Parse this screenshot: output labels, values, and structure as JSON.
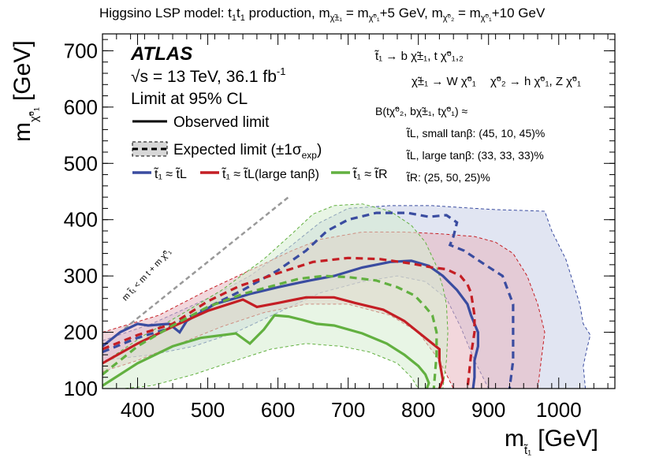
{
  "chart_data": {
    "type": "line",
    "title": "Higgsino LSP model: t̃₁t̃₁ production, m(χ̃₁±) = m(χ̃₁⁰)+5 GeV, m(χ̃₂⁰) = m(χ̃₁⁰)+10 GeV",
    "title_parts": {
      "a": "Higgsino LSP model: ",
      "b": "t",
      "c": "t",
      "d": " production, m",
      "e": " = m",
      "f": "+5 GeV, m",
      "g": " = m",
      "h": "+10 GeV",
      "chi_pm": "χ̃±₁",
      "chi10": "χ̃⁰₁",
      "chi20": "χ̃⁰₂",
      "stop_sub": "1"
    },
    "xlabel": "m",
    "xlabel_sub": "t̃₁",
    "xlabel_unit": "[GeV]",
    "ylabel": "m",
    "ylabel_sub": "χ̃⁰₁",
    "ylabel_unit": "[GeV]",
    "xlim": [
      350,
      1080
    ],
    "ylim": [
      100,
      730
    ],
    "xticks": [
      400,
      500,
      600,
      700,
      800,
      900,
      1000
    ],
    "yticks": [
      100,
      200,
      300,
      400,
      500,
      600,
      700
    ],
    "experiment": "ATLAS",
    "energy_text": "√s = 13 TeV, 36.1 fb",
    "energy_sup": "-1",
    "limit_text": "Limit at 95% CL",
    "legend": {
      "observed": "Observed limit",
      "expected": "Expected limit (±1σ",
      "expected_sub": "exp",
      "expected_close": ")",
      "series_labels": [
        "t̃₁ ≈ t̃L",
        "t̃₁ ≈ t̃L(large tanβ)",
        "t̃₁ ≈ t̃R"
      ]
    },
    "decay_text": {
      "line1": "t̃₁ → b χ̃±₁, t χ̃⁰₁,₂",
      "line2a": "χ̃±₁ → W χ̃⁰₁",
      "line2b": "χ̃⁰₂ → h χ̃⁰₁, Z χ̃⁰₁",
      "line3": "B(tχ̃⁰₂, bχ̃±₁, tχ̃⁰₁) ≈",
      "line4": "t̃L, small tanβ: (45, 10, 45)%",
      "line5": "t̃L, large tanβ: (33, 33, 33)%",
      "line6": "t̃R: (25, 50, 25)%"
    },
    "kinematic_label": "m t̃₁ < m t + m χ̃⁰₁",
    "kinematic_line": [
      [
        355,
        180
      ],
      [
        615,
        440
      ]
    ],
    "series": [
      {
        "name": "t̃₁ ≈ t̃L",
        "color": "#3a4ca0",
        "band_color": "#c9cfe8",
        "observed": [
          [
            350,
            175
          ],
          [
            375,
            200
          ],
          [
            400,
            215
          ],
          [
            415,
            212
          ],
          [
            445,
            215
          ],
          [
            460,
            200
          ],
          [
            470,
            220
          ],
          [
            510,
            250
          ],
          [
            560,
            268
          ],
          [
            600,
            280
          ],
          [
            645,
            292
          ],
          [
            680,
            300
          ],
          [
            720,
            315
          ],
          [
            760,
            325
          ],
          [
            790,
            327
          ],
          [
            815,
            318
          ],
          [
            835,
            300
          ],
          [
            855,
            275
          ],
          [
            870,
            250
          ],
          [
            875,
            230
          ],
          [
            885,
            200
          ],
          [
            885,
            175
          ],
          [
            880,
            150
          ],
          [
            880,
            120
          ],
          [
            878,
            100
          ]
        ],
        "expected": [
          [
            350,
            165
          ],
          [
            400,
            190
          ],
          [
            440,
            205
          ],
          [
            490,
            238
          ],
          [
            550,
            275
          ],
          [
            600,
            310
          ],
          [
            640,
            345
          ],
          [
            670,
            380
          ],
          [
            700,
            400
          ],
          [
            740,
            412
          ],
          [
            785,
            412
          ],
          [
            815,
            405
          ],
          [
            840,
            408
          ],
          [
            855,
            395
          ],
          [
            850,
            370
          ],
          [
            845,
            355
          ],
          [
            865,
            345
          ],
          [
            895,
            320
          ],
          [
            920,
            300
          ],
          [
            935,
            250
          ],
          [
            935,
            200
          ],
          [
            935,
            150
          ],
          [
            930,
            100
          ]
        ],
        "band": [
          [
            350,
            185
          ],
          [
            420,
            215
          ],
          [
            500,
            260
          ],
          [
            560,
            300
          ],
          [
            610,
            345
          ],
          [
            660,
            395
          ],
          [
            700,
            420
          ],
          [
            760,
            425
          ],
          [
            820,
            425
          ],
          [
            880,
            420
          ],
          [
            910,
            418
          ],
          [
            980,
            415
          ],
          [
            990,
            380
          ],
          [
            1000,
            355
          ],
          [
            1010,
            330
          ],
          [
            1020,
            290
          ],
          [
            1030,
            250
          ],
          [
            1035,
            215
          ],
          [
            1045,
            195
          ],
          [
            1040,
            170
          ],
          [
            1035,
            140
          ],
          [
            1038,
            100
          ],
          [
            900,
            100
          ],
          [
            880,
            150
          ],
          [
            860,
            210
          ],
          [
            840,
            260
          ],
          [
            810,
            290
          ],
          [
            770,
            300
          ],
          [
            720,
            290
          ],
          [
            660,
            270
          ],
          [
            600,
            235
          ],
          [
            540,
            200
          ],
          [
            480,
            175
          ],
          [
            420,
            160
          ],
          [
            350,
            150
          ]
        ]
      },
      {
        "name": "t̃₁ ≈ t̃L(large tanβ)",
        "color": "#c41e24",
        "band_color": "#e8b7bf",
        "observed": [
          [
            350,
            145
          ],
          [
            400,
            180
          ],
          [
            450,
            210
          ],
          [
            500,
            238
          ],
          [
            550,
            258
          ],
          [
            570,
            245
          ],
          [
            600,
            252
          ],
          [
            640,
            262
          ],
          [
            680,
            262
          ],
          [
            710,
            252
          ],
          [
            750,
            240
          ],
          [
            780,
            220
          ],
          [
            800,
            200
          ],
          [
            815,
            185
          ],
          [
            830,
            170
          ],
          [
            830,
            150
          ],
          [
            835,
            115
          ],
          [
            830,
            100
          ]
        ],
        "expected": [
          [
            350,
            170
          ],
          [
            400,
            195
          ],
          [
            450,
            215
          ],
          [
            500,
            255
          ],
          [
            545,
            282
          ],
          [
            600,
            305
          ],
          [
            650,
            325
          ],
          [
            700,
            332
          ],
          [
            745,
            330
          ],
          [
            790,
            322
          ],
          [
            820,
            315
          ],
          [
            840,
            312
          ],
          [
            860,
            300
          ],
          [
            870,
            285
          ],
          [
            875,
            270
          ],
          [
            880,
            230
          ],
          [
            880,
            200
          ],
          [
            875,
            160
          ],
          [
            870,
            100
          ]
        ],
        "band": [
          [
            350,
            200
          ],
          [
            430,
            230
          ],
          [
            500,
            275
          ],
          [
            560,
            310
          ],
          [
            620,
            345
          ],
          [
            660,
            365
          ],
          [
            720,
            378
          ],
          [
            780,
            378
          ],
          [
            830,
            375
          ],
          [
            880,
            370
          ],
          [
            910,
            360
          ],
          [
            935,
            340
          ],
          [
            955,
            300
          ],
          [
            970,
            250
          ],
          [
            980,
            200
          ],
          [
            975,
            150
          ],
          [
            970,
            100
          ],
          [
            850,
            100
          ],
          [
            830,
            150
          ],
          [
            800,
            200
          ],
          [
            760,
            230
          ],
          [
            700,
            250
          ],
          [
            640,
            250
          ],
          [
            580,
            235
          ],
          [
            520,
            210
          ],
          [
            460,
            180
          ],
          [
            400,
            150
          ],
          [
            350,
            130
          ]
        ]
      },
      {
        "name": "t̃₁ ≈ t̃R",
        "color": "#62b040",
        "band_color": "#d6ecd0",
        "observed": [
          [
            350,
            105
          ],
          [
            400,
            145
          ],
          [
            450,
            175
          ],
          [
            490,
            190
          ],
          [
            540,
            198
          ],
          [
            560,
            180
          ],
          [
            580,
            205
          ],
          [
            595,
            230
          ],
          [
            615,
            228
          ],
          [
            635,
            222
          ],
          [
            655,
            215
          ],
          [
            680,
            212
          ],
          [
            720,
            198
          ],
          [
            755,
            180
          ],
          [
            780,
            160
          ],
          [
            800,
            140
          ],
          [
            810,
            125
          ],
          [
            815,
            110
          ],
          [
            812,
            100
          ]
        ],
        "expected": [
          [
            350,
            125
          ],
          [
            400,
            175
          ],
          [
            450,
            212
          ],
          [
            500,
            245
          ],
          [
            550,
            268
          ],
          [
            600,
            285
          ],
          [
            630,
            295
          ],
          [
            665,
            300
          ],
          [
            700,
            298
          ],
          [
            740,
            292
          ],
          [
            770,
            280
          ],
          [
            795,
            265
          ],
          [
            810,
            245
          ],
          [
            820,
            230
          ],
          [
            826,
            200
          ],
          [
            826,
            160
          ],
          [
            822,
            100
          ]
        ],
        "band": [
          [
            350,
            145
          ],
          [
            410,
            195
          ],
          [
            460,
            230
          ],
          [
            520,
            275
          ],
          [
            580,
            330
          ],
          [
            620,
            375
          ],
          [
            650,
            410
          ],
          [
            680,
            425
          ],
          [
            720,
            428
          ],
          [
            760,
            415
          ],
          [
            790,
            390
          ],
          [
            810,
            360
          ],
          [
            825,
            320
          ],
          [
            835,
            280
          ],
          [
            840,
            250
          ],
          [
            842,
            200
          ],
          [
            840,
            150
          ],
          [
            835,
            100
          ],
          [
            800,
            100
          ],
          [
            790,
            120
          ],
          [
            770,
            145
          ],
          [
            730,
            165
          ],
          [
            690,
            175
          ],
          [
            640,
            180
          ],
          [
            590,
            170
          ],
          [
            540,
            150
          ],
          [
            480,
            125
          ],
          [
            420,
            105
          ],
          [
            380,
            100
          ],
          [
            350,
            100
          ]
        ]
      }
    ]
  }
}
